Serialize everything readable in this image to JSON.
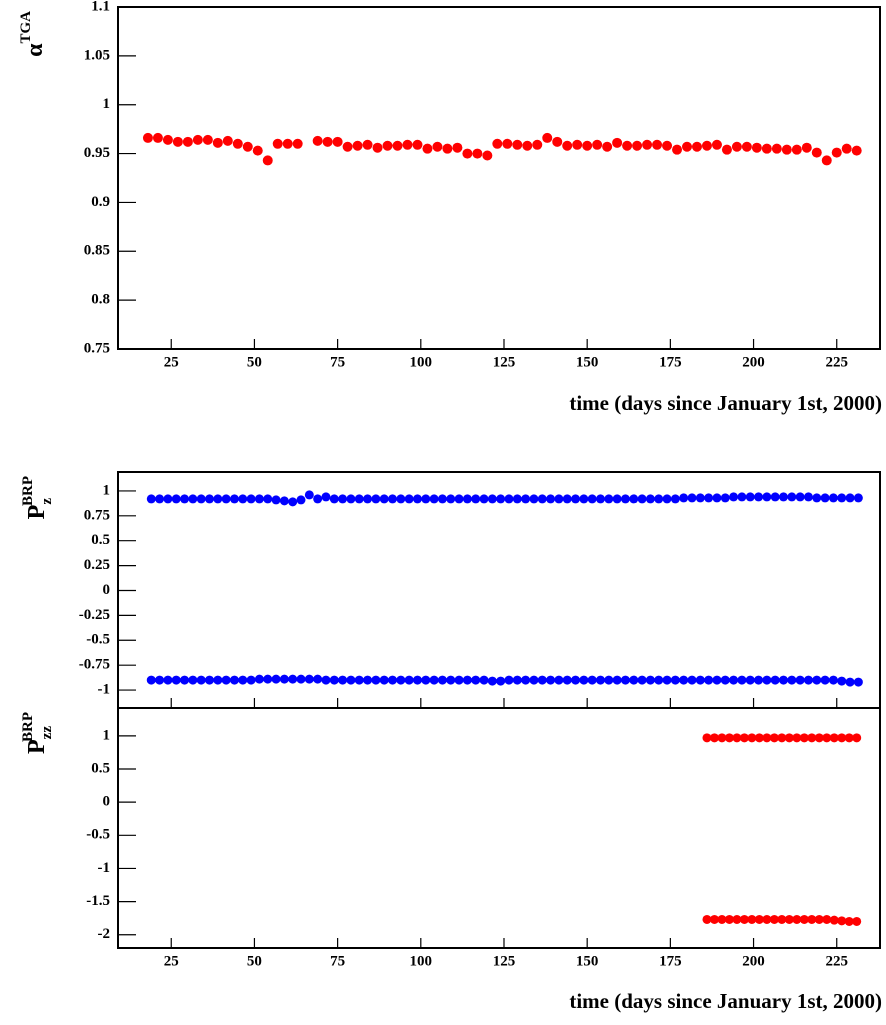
{
  "chart_data": [
    {
      "type": "scatter",
      "ylabel": "α",
      "ylabel_sup": "TGA",
      "xlabel": "time (days since January 1st, 2000)",
      "xlim": [
        9,
        238
      ],
      "xticks": [
        25,
        50,
        75,
        100,
        125,
        150,
        175,
        200,
        225
      ],
      "ylim": [
        0.75,
        1.1
      ],
      "yticks": [
        0.75,
        0.8,
        0.85,
        0.9,
        0.95,
        1,
        1.05,
        1.1
      ],
      "series": [
        {
          "color": "#ff0000",
          "x": [
            18,
            21,
            24,
            27,
            30,
            33,
            36,
            39,
            42,
            45,
            48,
            51,
            54,
            57,
            60,
            63,
            69,
            72,
            75,
            78,
            81,
            84,
            87,
            90,
            93,
            96,
            99,
            102,
            105,
            108,
            111,
            114,
            117,
            120,
            123,
            126,
            129,
            132,
            135,
            138,
            141,
            144,
            147,
            150,
            153,
            156,
            159,
            162,
            165,
            168,
            171,
            174,
            177,
            180,
            183,
            186,
            189,
            192,
            195,
            198,
            201,
            204,
            207,
            210,
            213,
            216,
            219,
            222,
            225,
            228,
            231
          ],
          "values": [
            0.966,
            0.966,
            0.964,
            0.962,
            0.962,
            0.964,
            0.964,
            0.961,
            0.963,
            0.96,
            0.957,
            0.953,
            0.943,
            0.96,
            0.96,
            0.96,
            0.963,
            0.962,
            0.962,
            0.957,
            0.958,
            0.959,
            0.956,
            0.958,
            0.958,
            0.959,
            0.959,
            0.955,
            0.957,
            0.955,
            0.956,
            0.95,
            0.95,
            0.948,
            0.96,
            0.96,
            0.959,
            0.958,
            0.959,
            0.966,
            0.962,
            0.958,
            0.959,
            0.958,
            0.959,
            0.957,
            0.961,
            0.958,
            0.958,
            0.959,
            0.959,
            0.958,
            0.954,
            0.957,
            0.957,
            0.958,
            0.959,
            0.954,
            0.957,
            0.957,
            0.956,
            0.955,
            0.955,
            0.954,
            0.954,
            0.956,
            0.951,
            0.943,
            0.951,
            0.955,
            0.953
          ]
        }
      ]
    },
    {
      "type": "scatter",
      "ylabel": "P",
      "ylabel_sup": "BRP",
      "ylabel_sub": "z",
      "show_xtick_labels": false,
      "xlim": [
        9,
        238
      ],
      "xticks": [
        25,
        50,
        75,
        100,
        125,
        150,
        175,
        200,
        225
      ],
      "ylim": [
        -1.18,
        1.19
      ],
      "yticks": [
        -1,
        -0.75,
        -0.5,
        -0.25,
        0,
        0.25,
        0.5,
        0.75,
        1
      ],
      "series": [
        {
          "color": "#0000ff",
          "x": [
            19,
            21.5,
            24,
            26.5,
            29,
            31.5,
            34,
            36.5,
            39,
            41.5,
            44,
            46.5,
            49,
            51.5,
            54,
            56.5,
            59,
            61.5,
            64,
            66.5,
            69,
            71.5,
            74,
            76.5,
            79,
            81.5,
            84,
            86.5,
            89,
            91.5,
            94,
            96.5,
            99,
            101.5,
            104,
            106.5,
            109,
            111.5,
            114,
            116.5,
            119,
            121.5,
            124,
            126.5,
            129,
            131.5,
            134,
            136.5,
            139,
            141.5,
            144,
            146.5,
            149,
            151.5,
            154,
            156.5,
            159,
            161.5,
            164,
            166.5,
            169,
            171.5,
            174,
            176.5,
            179,
            181.5,
            184,
            186.5,
            189,
            191.5,
            194,
            196.5,
            199,
            201.5,
            204,
            206.5,
            209,
            211.5,
            214,
            216.5,
            219,
            221.5,
            224,
            226.5,
            229,
            231.5
          ],
          "values": [
            0.92,
            0.92,
            0.92,
            0.92,
            0.92,
            0.92,
            0.92,
            0.92,
            0.92,
            0.92,
            0.92,
            0.92,
            0.92,
            0.92,
            0.92,
            0.91,
            0.9,
            0.89,
            0.91,
            0.96,
            0.92,
            0.94,
            0.92,
            0.92,
            0.92,
            0.92,
            0.92,
            0.92,
            0.92,
            0.92,
            0.92,
            0.92,
            0.92,
            0.92,
            0.92,
            0.92,
            0.92,
            0.92,
            0.92,
            0.92,
            0.92,
            0.92,
            0.92,
            0.92,
            0.92,
            0.92,
            0.92,
            0.92,
            0.92,
            0.92,
            0.92,
            0.92,
            0.92,
            0.92,
            0.92,
            0.92,
            0.92,
            0.92,
            0.92,
            0.92,
            0.92,
            0.92,
            0.92,
            0.92,
            0.93,
            0.93,
            0.93,
            0.93,
            0.93,
            0.93,
            0.94,
            0.94,
            0.94,
            0.94,
            0.94,
            0.94,
            0.94,
            0.94,
            0.94,
            0.94,
            0.93,
            0.93,
            0.93,
            0.93,
            0.93,
            0.93
          ]
        },
        {
          "color": "#0000ff",
          "x": [
            19,
            21.5,
            24,
            26.5,
            29,
            31.5,
            34,
            36.5,
            39,
            41.5,
            44,
            46.5,
            49,
            51.5,
            54,
            56.5,
            59,
            61.5,
            64,
            66.5,
            69,
            71.5,
            74,
            76.5,
            79,
            81.5,
            84,
            86.5,
            89,
            91.5,
            94,
            96.5,
            99,
            101.5,
            104,
            106.5,
            109,
            111.5,
            114,
            116.5,
            119,
            121.5,
            124,
            126.5,
            129,
            131.5,
            134,
            136.5,
            139,
            141.5,
            144,
            146.5,
            149,
            151.5,
            154,
            156.5,
            159,
            161.5,
            164,
            166.5,
            169,
            171.5,
            174,
            176.5,
            179,
            181.5,
            184,
            186.5,
            189,
            191.5,
            194,
            196.5,
            199,
            201.5,
            204,
            206.5,
            209,
            211.5,
            214,
            216.5,
            219,
            221.5,
            224,
            226.5,
            229,
            231.5
          ],
          "values": [
            -0.9,
            -0.9,
            -0.9,
            -0.9,
            -0.9,
            -0.9,
            -0.9,
            -0.9,
            -0.9,
            -0.9,
            -0.9,
            -0.9,
            -0.9,
            -0.89,
            -0.89,
            -0.89,
            -0.89,
            -0.89,
            -0.89,
            -0.89,
            -0.89,
            -0.9,
            -0.9,
            -0.9,
            -0.9,
            -0.9,
            -0.9,
            -0.9,
            -0.9,
            -0.9,
            -0.9,
            -0.9,
            -0.9,
            -0.9,
            -0.9,
            -0.9,
            -0.9,
            -0.9,
            -0.9,
            -0.9,
            -0.9,
            -0.91,
            -0.91,
            -0.9,
            -0.9,
            -0.9,
            -0.9,
            -0.9,
            -0.9,
            -0.9,
            -0.9,
            -0.9,
            -0.9,
            -0.9,
            -0.9,
            -0.9,
            -0.9,
            -0.9,
            -0.9,
            -0.9,
            -0.9,
            -0.9,
            -0.9,
            -0.9,
            -0.9,
            -0.9,
            -0.9,
            -0.9,
            -0.9,
            -0.9,
            -0.9,
            -0.9,
            -0.9,
            -0.9,
            -0.9,
            -0.9,
            -0.9,
            -0.9,
            -0.9,
            -0.9,
            -0.9,
            -0.9,
            -0.9,
            -0.91,
            -0.92,
            -0.92
          ]
        }
      ]
    },
    {
      "type": "scatter",
      "ylabel": "P",
      "ylabel_sup": "BRP",
      "ylabel_sub": "zz",
      "xlabel": "time (days since January 1st, 2000)",
      "xlim": [
        9,
        238
      ],
      "xticks": [
        25,
        50,
        75,
        100,
        125,
        150,
        175,
        200,
        225
      ],
      "ylim": [
        -2.2,
        1.42
      ],
      "yticks": [
        -2,
        -1.5,
        -1,
        -0.5,
        0,
        0.5,
        1
      ],
      "series": [
        {
          "color": "#ff0000",
          "x": [
            186,
            188.25,
            190.5,
            192.75,
            195,
            197.25,
            199.5,
            201.75,
            204,
            206.25,
            208.5,
            210.75,
            213,
            215.25,
            217.5,
            219.75,
            222,
            224.25,
            226.5,
            228.75,
            231
          ],
          "values": [
            0.97,
            0.97,
            0.97,
            0.97,
            0.97,
            0.97,
            0.97,
            0.97,
            0.97,
            0.97,
            0.97,
            0.97,
            0.97,
            0.97,
            0.97,
            0.97,
            0.97,
            0.97,
            0.97,
            0.97,
            0.97
          ]
        },
        {
          "color": "#ff0000",
          "x": [
            186,
            188.25,
            190.5,
            192.75,
            195,
            197.25,
            199.5,
            201.75,
            204,
            206.25,
            208.5,
            210.75,
            213,
            215.25,
            217.5,
            219.75,
            222,
            224.25,
            226.5,
            228.75,
            231
          ],
          "values": [
            -1.77,
            -1.77,
            -1.77,
            -1.77,
            -1.77,
            -1.77,
            -1.77,
            -1.77,
            -1.77,
            -1.77,
            -1.77,
            -1.77,
            -1.77,
            -1.77,
            -1.77,
            -1.77,
            -1.77,
            -1.78,
            -1.79,
            -1.8,
            -1.8
          ]
        }
      ]
    }
  ]
}
